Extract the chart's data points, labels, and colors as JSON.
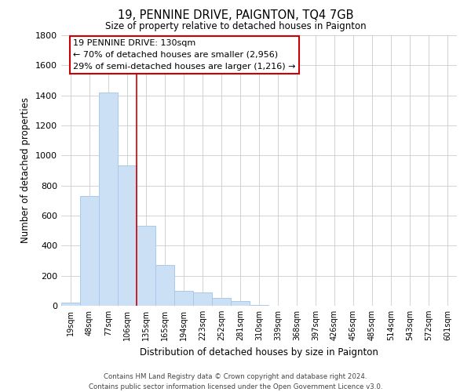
{
  "title": "19, PENNINE DRIVE, PAIGNTON, TQ4 7GB",
  "subtitle": "Size of property relative to detached houses in Paignton",
  "xlabel": "Distribution of detached houses by size in Paignton",
  "ylabel": "Number of detached properties",
  "bar_labels": [
    "19sqm",
    "48sqm",
    "77sqm",
    "106sqm",
    "135sqm",
    "165sqm",
    "194sqm",
    "223sqm",
    "252sqm",
    "281sqm",
    "310sqm",
    "339sqm",
    "368sqm",
    "397sqm",
    "426sqm",
    "456sqm",
    "485sqm",
    "514sqm",
    "543sqm",
    "572sqm",
    "601sqm"
  ],
  "bar_values": [
    20,
    730,
    1420,
    935,
    530,
    270,
    100,
    90,
    50,
    30,
    5,
    2,
    1,
    0,
    0,
    0,
    0,
    0,
    0,
    0,
    0
  ],
  "bar_color": "#cce0f5",
  "bar_edge_color": "#aac8e8",
  "property_line_color": "#cc0000",
  "annotation_line1": "19 PENNINE DRIVE: 130sqm",
  "annotation_line2": "← 70% of detached houses are smaller (2,956)",
  "annotation_line3": "29% of semi-detached houses are larger (1,216) →",
  "ylim": [
    0,
    1800
  ],
  "yticks": [
    0,
    200,
    400,
    600,
    800,
    1000,
    1200,
    1400,
    1600,
    1800
  ],
  "footer_line1": "Contains HM Land Registry data © Crown copyright and database right 2024.",
  "footer_line2": "Contains public sector information licensed under the Open Government Licence v3.0.",
  "background_color": "#ffffff",
  "grid_color": "#cccccc"
}
